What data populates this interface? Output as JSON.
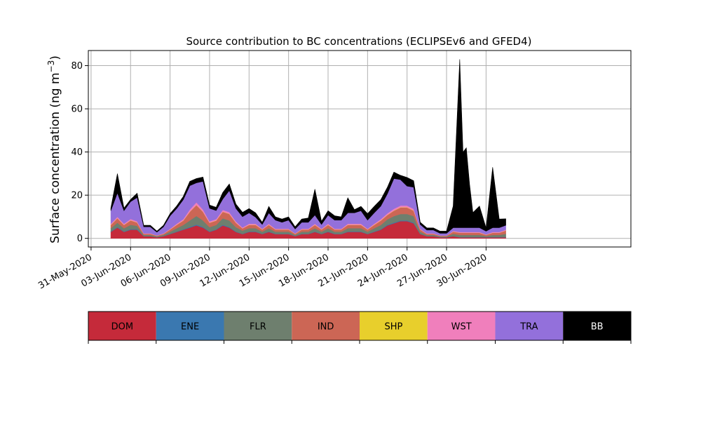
{
  "chart_data": {
    "type": "area",
    "stacked": true,
    "title": "Source contribution to BC concentrations (ECLIPSEv6 and GFED4)",
    "ylabel": "Surface concentration (ng m",
    "ylabel_sup": "−3",
    "ylabel_close": ")",
    "ylim": [
      -4,
      87
    ],
    "xlim": [
      "2020-05-30T19:00",
      "2020-07-11T00:00"
    ],
    "x_tick_labels": [
      "31-May-2020",
      "03-Jun-2020",
      "06-Jun-2020",
      "09-Jun-2020",
      "12-Jun-2020",
      "15-Jun-2020",
      "18-Jun-2020",
      "21-Jun-2020",
      "24-Jun-2020",
      "27-Jun-2020",
      "30-Jun-2020"
    ],
    "x_tick_dates": [
      "2020-05-31",
      "2020-06-03",
      "2020-06-06",
      "2020-06-09",
      "2020-06-12",
      "2020-06-15",
      "2020-06-18",
      "2020-06-21",
      "2020-06-24",
      "2020-06-27",
      "2020-06-30"
    ],
    "y_ticks": [
      0,
      20,
      40,
      60,
      80
    ],
    "grid": true,
    "x": [
      "2020-06-01T12:00",
      "2020-06-02T00:00",
      "2020-06-02T12:00",
      "2020-06-03T00:00",
      "2020-06-03T12:00",
      "2020-06-04T00:00",
      "2020-06-04T12:00",
      "2020-06-05T00:00",
      "2020-06-05T12:00",
      "2020-06-06T00:00",
      "2020-06-06T12:00",
      "2020-06-07T00:00",
      "2020-06-07T12:00",
      "2020-06-08T00:00",
      "2020-06-08T12:00",
      "2020-06-09T00:00",
      "2020-06-09T12:00",
      "2020-06-10T00:00",
      "2020-06-10T12:00",
      "2020-06-11T00:00",
      "2020-06-11T12:00",
      "2020-06-12T00:00",
      "2020-06-12T12:00",
      "2020-06-13T00:00",
      "2020-06-13T12:00",
      "2020-06-14T00:00",
      "2020-06-14T12:00",
      "2020-06-15T00:00",
      "2020-06-15T12:00",
      "2020-06-16T00:00",
      "2020-06-16T12:00",
      "2020-06-17T00:00",
      "2020-06-17T12:00",
      "2020-06-18T00:00",
      "2020-06-18T12:00",
      "2020-06-19T00:00",
      "2020-06-19T12:00",
      "2020-06-20T00:00",
      "2020-06-20T12:00",
      "2020-06-21T00:00",
      "2020-06-21T12:00",
      "2020-06-22T00:00",
      "2020-06-22T12:00",
      "2020-06-23T00:00",
      "2020-06-23T12:00",
      "2020-06-24T00:00",
      "2020-06-24T12:00",
      "2020-06-25T00:00",
      "2020-06-25T12:00",
      "2020-06-26T00:00",
      "2020-06-26T12:00",
      "2020-06-27T00:00",
      "2020-06-27T12:00",
      "2020-06-28T00:00",
      "2020-06-28T06:00",
      "2020-06-28T12:00",
      "2020-06-28T18:00",
      "2020-06-29T00:00",
      "2020-06-29T12:00",
      "2020-06-30T00:00",
      "2020-06-30T12:00",
      "2020-07-01T00:00",
      "2020-07-01T12:00"
    ],
    "series": [
      {
        "name": "DOM",
        "color": "#c52a3a",
        "values": [
          3,
          5,
          3,
          4,
          4,
          1,
          1,
          0.5,
          1,
          2,
          3,
          4,
          5,
          6,
          5,
          3,
          4,
          6,
          5,
          3,
          2,
          3,
          3,
          2,
          3,
          2,
          2,
          2,
          1,
          2,
          2,
          3,
          2,
          3,
          2,
          2,
          3,
          3,
          3,
          2,
          3,
          4,
          6,
          7,
          8,
          8,
          7,
          2,
          1,
          1,
          0.5,
          0.5,
          1,
          0.5,
          0.5,
          0.5,
          0.5,
          0.5,
          0.5,
          0.5,
          0.5,
          0.5,
          0.5
        ]
      },
      {
        "name": "ENE",
        "color": "#3a78b0",
        "values": [
          0.2,
          0.3,
          0.2,
          0.3,
          0.3,
          0.1,
          0.1,
          0.1,
          0.1,
          0.1,
          0.2,
          0.2,
          0.3,
          0.4,
          0.3,
          0.2,
          0.2,
          0.3,
          0.3,
          0.2,
          0.1,
          0.2,
          0.2,
          0.1,
          0.2,
          0.1,
          0.1,
          0.1,
          0.1,
          0.1,
          0.1,
          0.2,
          0.1,
          0.2,
          0.1,
          0.1,
          0.2,
          0.2,
          0.2,
          0.1,
          0.2,
          0.2,
          0.3,
          0.3,
          0.3,
          0.3,
          0.3,
          0.1,
          0.1,
          0.1,
          0.1,
          0.1,
          0.1,
          0.1,
          0.1,
          0.1,
          0.1,
          0.1,
          0.1,
          0.1,
          0.1,
          0.1,
          0.1
        ]
      },
      {
        "name": "FLR",
        "color": "#6e7f6e",
        "values": [
          1.5,
          2,
          1.5,
          2,
          1.5,
          0.5,
          0.5,
          0.3,
          0.5,
          1,
          1.5,
          2,
          3,
          4,
          3,
          2,
          2,
          3,
          3,
          2,
          1.5,
          1.5,
          1.5,
          1,
          1.5,
          1,
          1,
          1,
          0.5,
          1,
          1,
          1.5,
          1,
          1.5,
          1,
          1,
          1.5,
          1.5,
          1.5,
          1,
          1.5,
          2,
          2.5,
          3,
          3,
          3,
          3,
          1,
          0.5,
          0.5,
          0.3,
          0.3,
          1,
          1,
          1,
          1,
          1,
          1,
          1,
          0.5,
          1,
          1,
          1.5
        ]
      },
      {
        "name": "IND",
        "color": "#cc6655",
        "values": [
          1.5,
          2,
          1.5,
          2,
          1.5,
          0.5,
          0.5,
          0.3,
          0.5,
          1,
          1.5,
          2,
          4,
          5,
          4,
          2,
          2,
          3,
          3,
          2,
          1,
          1.5,
          1.5,
          1,
          1.5,
          1,
          1,
          1,
          0.5,
          1,
          1,
          1.5,
          1,
          1.5,
          1,
          1,
          1.5,
          1.5,
          1.5,
          1,
          1.5,
          2,
          2,
          2.5,
          3,
          3,
          2.5,
          1,
          0.5,
          0.5,
          0.3,
          0.3,
          1,
          1,
          1,
          1,
          1,
          1,
          1,
          0.5,
          1,
          1,
          1.5
        ]
      },
      {
        "name": "SHP",
        "color": "#e8cf2c",
        "values": [
          0.1,
          0.1,
          0.1,
          0.1,
          0.1,
          0.05,
          0.05,
          0.05,
          0.05,
          0.05,
          0.1,
          0.1,
          0.1,
          0.1,
          0.1,
          0.1,
          0.1,
          0.1,
          0.1,
          0.1,
          0.05,
          0.1,
          0.1,
          0.05,
          0.1,
          0.05,
          0.05,
          0.05,
          0.05,
          0.05,
          0.05,
          0.1,
          0.05,
          0.1,
          0.05,
          0.05,
          0.1,
          0.1,
          0.1,
          0.05,
          0.1,
          0.1,
          0.1,
          0.1,
          0.1,
          0.1,
          0.1,
          0.05,
          0.05,
          0.05,
          0.05,
          0.05,
          0.05,
          0.05,
          0.05,
          0.05,
          0.05,
          0.05,
          0.05,
          0.05,
          0.05,
          0.05,
          0.05
        ]
      },
      {
        "name": "WST",
        "color": "#f07fbc",
        "values": [
          0.5,
          0.6,
          0.5,
          0.6,
          0.5,
          0.2,
          0.2,
          0.1,
          0.2,
          0.3,
          0.5,
          0.6,
          1,
          1.2,
          1,
          0.6,
          0.6,
          0.8,
          0.8,
          0.6,
          0.4,
          0.5,
          0.5,
          0.3,
          0.5,
          0.3,
          0.3,
          0.3,
          0.2,
          0.3,
          0.3,
          0.5,
          0.3,
          0.5,
          0.3,
          0.3,
          0.5,
          0.5,
          0.5,
          0.3,
          0.5,
          0.6,
          0.7,
          0.8,
          0.8,
          0.8,
          0.8,
          0.3,
          0.2,
          0.2,
          0.1,
          0.1,
          0.3,
          0.3,
          0.3,
          0.3,
          0.3,
          0.3,
          0.3,
          0.2,
          0.3,
          0.3,
          0.4
        ]
      },
      {
        "name": "TRA",
        "color": "#9370db",
        "values": [
          6,
          11,
          6,
          8,
          11,
          3,
          3,
          1.5,
          3,
          6,
          7,
          9,
          11,
          9,
          13,
          6,
          4,
          5,
          10,
          6,
          5,
          5,
          3,
          2,
          5,
          4,
          3,
          4,
          2,
          3,
          3,
          4,
          2,
          4,
          4,
          4,
          5,
          5,
          6,
          4,
          5,
          6,
          9,
          14,
          12,
          9,
          10,
          2,
          1.5,
          1.5,
          1,
          1,
          1.5,
          2,
          2,
          2,
          2,
          2,
          2,
          1.5,
          2,
          2,
          2
        ]
      },
      {
        "name": "BB",
        "color": "#000000",
        "values": [
          1.2,
          9,
          1.2,
          1,
          2,
          0.7,
          0.7,
          0.5,
          0.7,
          1,
          1.2,
          1.5,
          2,
          2,
          2,
          1.5,
          1.5,
          3,
          3,
          2,
          2,
          2,
          2,
          1,
          3,
          1.5,
          1.5,
          1.5,
          1,
          1.5,
          2,
          12,
          1.5,
          2,
          2,
          1.5,
          7,
          1.5,
          2,
          3,
          3,
          3,
          3,
          3,
          2,
          4,
          3,
          1,
          1,
          1,
          1,
          1,
          10,
          78,
          35,
          37,
          20,
          7,
          10,
          1.5,
          28,
          4,
          3
        ]
      }
    ],
    "legend_position": "bottom (horizontal color bar)"
  },
  "legend": {
    "items": [
      {
        "label": "DOM",
        "color": "#c52a3a",
        "text_color": "#000000"
      },
      {
        "label": "ENE",
        "color": "#3a78b0",
        "text_color": "#000000"
      },
      {
        "label": "FLR",
        "color": "#6e7f6e",
        "text_color": "#000000"
      },
      {
        "label": "IND",
        "color": "#cc6655",
        "text_color": "#000000"
      },
      {
        "label": "SHP",
        "color": "#e8cf2c",
        "text_color": "#000000"
      },
      {
        "label": "WST",
        "color": "#f07fbc",
        "text_color": "#000000"
      },
      {
        "label": "TRA",
        "color": "#9370db",
        "text_color": "#000000"
      },
      {
        "label": "BB",
        "color": "#000000",
        "text_color": "#ffffff"
      }
    ]
  }
}
